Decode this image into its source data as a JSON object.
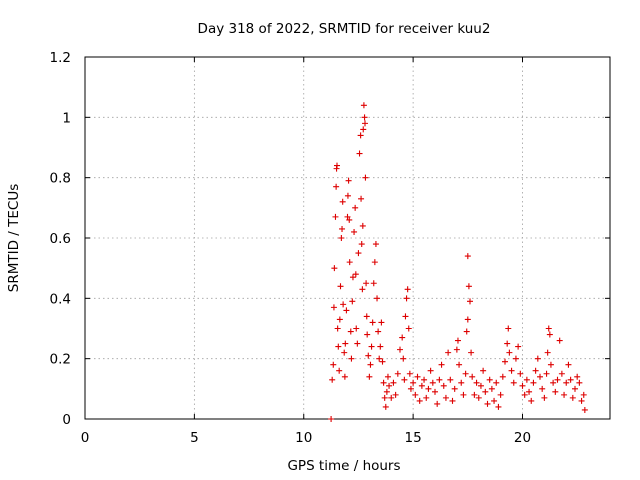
{
  "chart_data": {
    "type": "scatter",
    "title": "Day 318 of 2022, SRMTID for receiver kuu2",
    "xlabel": "GPS time / hours",
    "ylabel": "SRMTID / TECUs",
    "xlim": [
      0,
      24
    ],
    "ylim": [
      0,
      1.2
    ],
    "x_ticks": [
      "0",
      "5",
      "10",
      "15",
      "20"
    ],
    "y_ticks": [
      "0",
      "0.2",
      "0.4",
      "0.6",
      "0.8",
      "1",
      "1.2"
    ],
    "grid": true,
    "marker_color": "#dd0000",
    "series": [
      {
        "points": [
          [
            11.25,
            0.0
          ],
          [
            11.3,
            0.13
          ],
          [
            11.35,
            0.18
          ],
          [
            11.38,
            0.37
          ],
          [
            11.4,
            0.5
          ],
          [
            11.45,
            0.67
          ],
          [
            11.48,
            0.77
          ],
          [
            11.5,
            0.83
          ],
          [
            11.52,
            0.84
          ],
          [
            11.55,
            0.3
          ],
          [
            11.58,
            0.24
          ],
          [
            11.62,
            0.16
          ],
          [
            11.65,
            0.33
          ],
          [
            11.68,
            0.44
          ],
          [
            11.72,
            0.6
          ],
          [
            11.75,
            0.63
          ],
          [
            11.78,
            0.72
          ],
          [
            11.8,
            0.38
          ],
          [
            11.85,
            0.22
          ],
          [
            11.88,
            0.14
          ],
          [
            11.9,
            0.25
          ],
          [
            11.95,
            0.36
          ],
          [
            12.0,
            0.67
          ],
          [
            12.02,
            0.74
          ],
          [
            12.05,
            0.79
          ],
          [
            12.08,
            0.66
          ],
          [
            12.1,
            0.52
          ],
          [
            12.15,
            0.29
          ],
          [
            12.18,
            0.2
          ],
          [
            12.22,
            0.39
          ],
          [
            12.25,
            0.47
          ],
          [
            12.3,
            0.62
          ],
          [
            12.35,
            0.7
          ],
          [
            12.38,
            0.48
          ],
          [
            12.4,
            0.3
          ],
          [
            12.45,
            0.25
          ],
          [
            12.5,
            0.55
          ],
          [
            12.55,
            0.88
          ],
          [
            12.6,
            0.94
          ],
          [
            12.62,
            0.73
          ],
          [
            12.65,
            0.58
          ],
          [
            12.68,
            0.43
          ],
          [
            12.7,
            0.64
          ],
          [
            12.72,
            0.96
          ],
          [
            12.75,
            1.04
          ],
          [
            12.78,
            1.0
          ],
          [
            12.8,
            0.98
          ],
          [
            12.82,
            0.8
          ],
          [
            12.85,
            0.45
          ],
          [
            12.88,
            0.34
          ],
          [
            12.9,
            0.28
          ],
          [
            12.95,
            0.21
          ],
          [
            13.0,
            0.14
          ],
          [
            13.05,
            0.18
          ],
          [
            13.1,
            0.24
          ],
          [
            13.15,
            0.32
          ],
          [
            13.2,
            0.45
          ],
          [
            13.25,
            0.52
          ],
          [
            13.3,
            0.58
          ],
          [
            13.35,
            0.4
          ],
          [
            13.4,
            0.29
          ],
          [
            13.45,
            0.2
          ],
          [
            13.5,
            0.24
          ],
          [
            13.55,
            0.32
          ],
          [
            13.6,
            0.19
          ],
          [
            13.65,
            0.12
          ],
          [
            13.7,
            0.07
          ],
          [
            13.75,
            0.04
          ],
          [
            13.8,
            0.09
          ],
          [
            13.85,
            0.14
          ],
          [
            13.9,
            0.11
          ],
          [
            14.0,
            0.07
          ],
          [
            14.1,
            0.12
          ],
          [
            14.2,
            0.08
          ],
          [
            14.3,
            0.15
          ],
          [
            14.4,
            0.23
          ],
          [
            14.5,
            0.27
          ],
          [
            14.55,
            0.2
          ],
          [
            14.6,
            0.13
          ],
          [
            14.65,
            0.34
          ],
          [
            14.7,
            0.4
          ],
          [
            14.75,
            0.43
          ],
          [
            14.8,
            0.3
          ],
          [
            14.85,
            0.15
          ],
          [
            14.9,
            0.1
          ],
          [
            15.0,
            0.12
          ],
          [
            15.1,
            0.08
          ],
          [
            15.2,
            0.14
          ],
          [
            15.3,
            0.06
          ],
          [
            15.4,
            0.11
          ],
          [
            15.5,
            0.13
          ],
          [
            15.6,
            0.07
          ],
          [
            15.7,
            0.1
          ],
          [
            15.8,
            0.16
          ],
          [
            15.9,
            0.12
          ],
          [
            16.0,
            0.09
          ],
          [
            16.1,
            0.05
          ],
          [
            16.2,
            0.13
          ],
          [
            16.3,
            0.18
          ],
          [
            16.4,
            0.11
          ],
          [
            16.5,
            0.07
          ],
          [
            16.6,
            0.22
          ],
          [
            16.7,
            0.13
          ],
          [
            16.8,
            0.06
          ],
          [
            16.9,
            0.1
          ],
          [
            17.0,
            0.23
          ],
          [
            17.05,
            0.26
          ],
          [
            17.1,
            0.18
          ],
          [
            17.2,
            0.12
          ],
          [
            17.3,
            0.08
          ],
          [
            17.4,
            0.15
          ],
          [
            17.45,
            0.29
          ],
          [
            17.5,
            0.33
          ],
          [
            17.55,
            0.44
          ],
          [
            17.6,
            0.39
          ],
          [
            17.5,
            0.54
          ],
          [
            17.65,
            0.22
          ],
          [
            17.7,
            0.14
          ],
          [
            17.8,
            0.08
          ],
          [
            17.9,
            0.12
          ],
          [
            18.0,
            0.07
          ],
          [
            18.1,
            0.11
          ],
          [
            18.2,
            0.16
          ],
          [
            18.3,
            0.09
          ],
          [
            18.4,
            0.05
          ],
          [
            18.5,
            0.13
          ],
          [
            18.6,
            0.1
          ],
          [
            18.7,
            0.06
          ],
          [
            18.8,
            0.12
          ],
          [
            18.9,
            0.04
          ],
          [
            19.0,
            0.08
          ],
          [
            19.1,
            0.14
          ],
          [
            19.2,
            0.19
          ],
          [
            19.3,
            0.25
          ],
          [
            19.35,
            0.3
          ],
          [
            19.4,
            0.22
          ],
          [
            19.5,
            0.16
          ],
          [
            19.6,
            0.12
          ],
          [
            19.7,
            0.2
          ],
          [
            19.8,
            0.24
          ],
          [
            19.9,
            0.15
          ],
          [
            20.0,
            0.11
          ],
          [
            20.1,
            0.08
          ],
          [
            20.2,
            0.13
          ],
          [
            20.3,
            0.09
          ],
          [
            20.4,
            0.06
          ],
          [
            20.5,
            0.12
          ],
          [
            20.6,
            0.16
          ],
          [
            20.7,
            0.2
          ],
          [
            20.8,
            0.14
          ],
          [
            20.9,
            0.1
          ],
          [
            21.0,
            0.07
          ],
          [
            21.1,
            0.15
          ],
          [
            21.15,
            0.22
          ],
          [
            21.2,
            0.3
          ],
          [
            21.25,
            0.28
          ],
          [
            21.3,
            0.18
          ],
          [
            21.4,
            0.12
          ],
          [
            21.5,
            0.09
          ],
          [
            21.6,
            0.13
          ],
          [
            21.7,
            0.26
          ],
          [
            21.8,
            0.15
          ],
          [
            21.9,
            0.08
          ],
          [
            22.0,
            0.12
          ],
          [
            22.1,
            0.18
          ],
          [
            22.2,
            0.13
          ],
          [
            22.3,
            0.07
          ],
          [
            22.4,
            0.1
          ],
          [
            22.5,
            0.14
          ],
          [
            22.6,
            0.12
          ],
          [
            22.7,
            0.06
          ],
          [
            22.8,
            0.08
          ],
          [
            22.85,
            0.03
          ]
        ]
      }
    ]
  }
}
